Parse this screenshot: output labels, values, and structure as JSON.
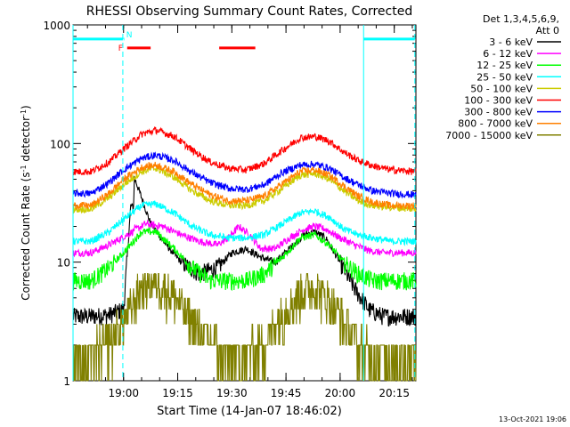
{
  "chart_data": {
    "type": "line",
    "title": "RHESSI Observing Summary Count Rates, Corrected",
    "xlabel": "Start Time (14-Jan-07 18:46:02)",
    "ylabel_parts": {
      "a": "Corrected Count Rate (s",
      "b": "-1",
      "c": " detector",
      "d": "-1",
      "e": ")"
    },
    "yscale": "log",
    "ylim": [
      1,
      1000
    ],
    "xlim": [
      0,
      95
    ],
    "x_units": "minutes after 18:46:02",
    "y_ticks": [
      {
        "v": 1,
        "label": "1"
      },
      {
        "v": 10,
        "label": "10"
      },
      {
        "v": 100,
        "label": "100"
      },
      {
        "v": 1000,
        "label": "1000"
      }
    ],
    "x_ticks": [
      {
        "v": 14,
        "label": "19:00"
      },
      {
        "v": 29,
        "label": "19:15"
      },
      {
        "v": 44,
        "label": "19:30"
      },
      {
        "v": 59,
        "label": "19:45"
      },
      {
        "v": 74,
        "label": "20:00"
      },
      {
        "v": 89,
        "label": "20:15"
      }
    ],
    "legend_header": [
      "Det 1,3,4,5,6,9,",
      "Att 0"
    ],
    "series": [
      {
        "name": "3 - 6 keV",
        "color": "#000000",
        "flare": {
          "t": 17,
          "amp": 52,
          "decay": 5
        },
        "points": [
          [
            0,
            3.5
          ],
          [
            5,
            3.5
          ],
          [
            10,
            3.6
          ],
          [
            14,
            4
          ],
          [
            16,
            30
          ],
          [
            20,
            25
          ],
          [
            25,
            15
          ],
          [
            30,
            10
          ],
          [
            35,
            8
          ],
          [
            40,
            9
          ],
          [
            44,
            12
          ],
          [
            48,
            13
          ],
          [
            52,
            11
          ],
          [
            56,
            10
          ],
          [
            60,
            13
          ],
          [
            64,
            17
          ],
          [
            67,
            18
          ],
          [
            70,
            16
          ],
          [
            74,
            10
          ],
          [
            78,
            6
          ],
          [
            82,
            4
          ],
          [
            86,
            3.5
          ],
          [
            90,
            3.5
          ],
          [
            95,
            3.5
          ]
        ]
      },
      {
        "name": "6 - 12 keV",
        "color": "#ff00ff",
        "flare": {
          "t": 17,
          "amp": 20,
          "decay": 4
        },
        "points": [
          [
            0,
            12
          ],
          [
            5,
            12
          ],
          [
            10,
            14
          ],
          [
            15,
            17
          ],
          [
            20,
            21
          ],
          [
            25,
            20
          ],
          [
            30,
            17
          ],
          [
            35,
            15
          ],
          [
            40,
            14
          ],
          [
            43,
            16
          ],
          [
            46,
            20
          ],
          [
            49,
            17
          ],
          [
            52,
            13
          ],
          [
            56,
            13
          ],
          [
            60,
            16
          ],
          [
            64,
            19
          ],
          [
            67,
            20
          ],
          [
            70,
            19
          ],
          [
            74,
            16
          ],
          [
            78,
            14
          ],
          [
            82,
            12.5
          ],
          [
            86,
            12
          ],
          [
            90,
            12
          ],
          [
            95,
            12
          ]
        ]
      },
      {
        "name": "12 - 25 keV",
        "color": "#00ff00",
        "points": [
          [
            0,
            7
          ],
          [
            5,
            7
          ],
          [
            10,
            9
          ],
          [
            14,
            12
          ],
          [
            19,
            18
          ],
          [
            23,
            18
          ],
          [
            28,
            13
          ],
          [
            33,
            9
          ],
          [
            38,
            7
          ],
          [
            43,
            7
          ],
          [
            48,
            7
          ],
          [
            53,
            8
          ],
          [
            58,
            11
          ],
          [
            63,
            16
          ],
          [
            67,
            17
          ],
          [
            71,
            14
          ],
          [
            75,
            10
          ],
          [
            79,
            8
          ],
          [
            83,
            7
          ],
          [
            88,
            7
          ],
          [
            95,
            7
          ]
        ]
      },
      {
        "name": "25 - 50 keV",
        "color": "#00ffff",
        "points": [
          [
            0,
            15
          ],
          [
            5,
            15
          ],
          [
            10,
            18
          ],
          [
            14,
            23
          ],
          [
            19,
            30
          ],
          [
            23,
            31
          ],
          [
            28,
            26
          ],
          [
            33,
            20
          ],
          [
            38,
            17
          ],
          [
            43,
            16
          ],
          [
            48,
            16
          ],
          [
            53,
            17
          ],
          [
            58,
            21
          ],
          [
            63,
            26
          ],
          [
            67,
            27
          ],
          [
            71,
            24
          ],
          [
            75,
            19
          ],
          [
            79,
            17
          ],
          [
            83,
            16
          ],
          [
            88,
            15
          ],
          [
            95,
            15
          ]
        ]
      },
      {
        "name": "50 - 100 keV",
        "color": "#cccc00",
        "points": [
          [
            0,
            28
          ],
          [
            5,
            28
          ],
          [
            10,
            35
          ],
          [
            14,
            45
          ],
          [
            19,
            58
          ],
          [
            23,
            62
          ],
          [
            28,
            52
          ],
          [
            33,
            40
          ],
          [
            38,
            33
          ],
          [
            43,
            30
          ],
          [
            48,
            30
          ],
          [
            53,
            33
          ],
          [
            58,
            42
          ],
          [
            63,
            54
          ],
          [
            67,
            56
          ],
          [
            71,
            50
          ],
          [
            75,
            40
          ],
          [
            79,
            33
          ],
          [
            83,
            30
          ],
          [
            88,
            29
          ],
          [
            95,
            28
          ]
        ]
      },
      {
        "name": "100 - 300 keV",
        "color": "#ff0000",
        "points": [
          [
            0,
            58
          ],
          [
            5,
            58
          ],
          [
            10,
            70
          ],
          [
            14,
            90
          ],
          [
            19,
            120
          ],
          [
            23,
            130
          ],
          [
            28,
            115
          ],
          [
            33,
            88
          ],
          [
            38,
            70
          ],
          [
            43,
            62
          ],
          [
            48,
            60
          ],
          [
            53,
            68
          ],
          [
            58,
            88
          ],
          [
            63,
            112
          ],
          [
            67,
            115
          ],
          [
            71,
            105
          ],
          [
            75,
            85
          ],
          [
            79,
            72
          ],
          [
            83,
            65
          ],
          [
            88,
            60
          ],
          [
            95,
            58
          ]
        ]
      },
      {
        "name": "300 - 800 keV",
        "color": "#0000ff",
        "points": [
          [
            0,
            38
          ],
          [
            5,
            38
          ],
          [
            10,
            47
          ],
          [
            14,
            60
          ],
          [
            19,
            75
          ],
          [
            23,
            80
          ],
          [
            28,
            72
          ],
          [
            33,
            57
          ],
          [
            38,
            47
          ],
          [
            43,
            42
          ],
          [
            48,
            41
          ],
          [
            53,
            45
          ],
          [
            58,
            57
          ],
          [
            63,
            66
          ],
          [
            67,
            67
          ],
          [
            71,
            62
          ],
          [
            75,
            52
          ],
          [
            79,
            45
          ],
          [
            83,
            40
          ],
          [
            88,
            38
          ],
          [
            95,
            37
          ]
        ]
      },
      {
        "name": "800 - 7000 keV",
        "color": "#ff8000",
        "points": [
          [
            0,
            30
          ],
          [
            5,
            30
          ],
          [
            10,
            38
          ],
          [
            14,
            50
          ],
          [
            19,
            63
          ],
          [
            23,
            66
          ],
          [
            28,
            58
          ],
          [
            33,
            45
          ],
          [
            38,
            37
          ],
          [
            43,
            33
          ],
          [
            48,
            33
          ],
          [
            53,
            36
          ],
          [
            58,
            46
          ],
          [
            63,
            58
          ],
          [
            67,
            60
          ],
          [
            71,
            54
          ],
          [
            75,
            44
          ],
          [
            79,
            36
          ],
          [
            83,
            32
          ],
          [
            88,
            30
          ],
          [
            95,
            30
          ]
        ]
      },
      {
        "name": "7000 - 15000 keV",
        "color": "#808000",
        "step": true,
        "points": [
          [
            0,
            1.6
          ],
          [
            5,
            1.6
          ],
          [
            10,
            2
          ],
          [
            14,
            3
          ],
          [
            19,
            6
          ],
          [
            23,
            7
          ],
          [
            28,
            5
          ],
          [
            33,
            3
          ],
          [
            38,
            2
          ],
          [
            43,
            1.6
          ],
          [
            48,
            1.6
          ],
          [
            53,
            2
          ],
          [
            58,
            3.5
          ],
          [
            63,
            5.5
          ],
          [
            67,
            6
          ],
          [
            71,
            4.5
          ],
          [
            75,
            3
          ],
          [
            79,
            2
          ],
          [
            83,
            1.6
          ],
          [
            88,
            1.6
          ],
          [
            95,
            1.6
          ]
        ]
      }
    ],
    "intervals": [
      {
        "label": "",
        "color": "#00ffff",
        "y": 760,
        "start": 0,
        "end": 13.8
      },
      {
        "label": "N",
        "color": "#00ffff",
        "y": 760,
        "start": 14,
        "end": 14.2
      },
      {
        "label": "",
        "color": "#00ffff",
        "y": 760,
        "start": 80.5,
        "end": 94.7
      },
      {
        "label": "F",
        "color": "#ff0000",
        "y": 640,
        "start": 15,
        "end": 21.5
      },
      {
        "label": "",
        "color": "#ff0000",
        "y": 640,
        "start": 40.5,
        "end": 50.5
      }
    ],
    "vlines": [
      {
        "x": 0,
        "color": "#00ffff",
        "style": "solid"
      },
      {
        "x": 13.8,
        "color": "#00ffff",
        "style": "dashed"
      },
      {
        "x": 80.5,
        "color": "#00ffff",
        "style": "solid"
      },
      {
        "x": 94.7,
        "color": "#00ffff",
        "style": "dashed"
      }
    ]
  },
  "footer": {
    "timestamp": "13-Oct-2021 19:06"
  }
}
